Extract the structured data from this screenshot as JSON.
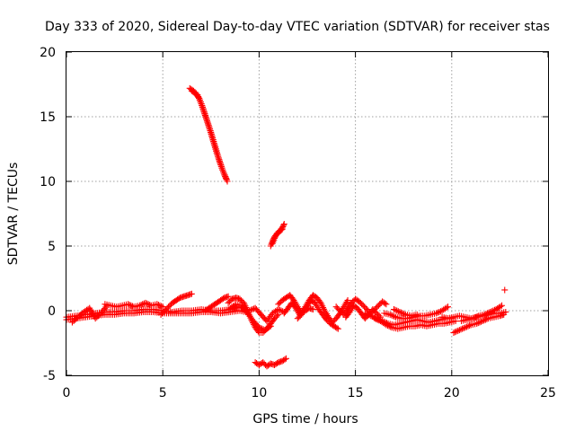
{
  "chart_data": {
    "type": "scatter",
    "title": "Day 333 of 2020, Sidereal Day-to-day VTEC variation (SDTVAR) for receiver stas",
    "xlabel": "GPS time / hours",
    "ylabel": "SDTVAR / TECUs",
    "xlim": [
      0,
      25
    ],
    "ylim": [
      -5,
      20
    ],
    "xticks": [
      "0",
      "5",
      "10",
      "15",
      "20",
      "25"
    ],
    "yticks": [
      "-5",
      "0",
      "5",
      "10",
      "15",
      "20"
    ],
    "grid": true,
    "marker": "+",
    "color": "#ff0000",
    "series": [
      {
        "name": "SDTVAR",
        "segments": [
          {
            "x": [
              0.0,
              0.5,
              1.0,
              1.5,
              2.0,
              2.5,
              3.0,
              3.5,
              4.0,
              4.5,
              5.0,
              5.5,
              6.0,
              6.5,
              7.0,
              7.5,
              8.0,
              8.5,
              9.0,
              9.3
            ],
            "y": [
              -0.5,
              -0.4,
              -0.3,
              -0.2,
              -0.1,
              -0.1,
              0.0,
              0.0,
              0.1,
              0.1,
              0.0,
              -0.1,
              0.0,
              0.0,
              0.1,
              0.0,
              0.0,
              0.1,
              0.3,
              0.1
            ]
          },
          {
            "x": [
              0.0,
              0.5,
              1.0,
              1.5,
              2.0,
              2.5,
              3.0,
              3.5,
              4.0,
              4.5,
              5.0,
              5.5,
              6.0,
              6.5,
              7.0,
              7.5,
              8.0,
              8.5,
              9.0,
              9.3
            ],
            "y": [
              -0.7,
              -0.6,
              -0.5,
              -0.4,
              -0.3,
              -0.3,
              -0.2,
              -0.2,
              -0.1,
              -0.1,
              -0.2,
              -0.2,
              -0.2,
              -0.2,
              -0.1,
              -0.1,
              -0.2,
              -0.1,
              0.0,
              -0.1
            ]
          },
          {
            "x": [
              0.3,
              0.6,
              0.9,
              1.2,
              1.5,
              1.8,
              2.1
            ],
            "y": [
              -0.9,
              -0.5,
              -0.1,
              0.2,
              -0.6,
              -0.2,
              0.4
            ]
          },
          {
            "x": [
              2.0,
              2.3,
              2.6,
              2.9,
              3.2,
              3.5,
              3.8,
              4.1,
              4.4,
              4.7,
              5.0
            ],
            "y": [
              0.5,
              0.4,
              0.3,
              0.4,
              0.5,
              0.3,
              0.4,
              0.6,
              0.4,
              0.5,
              0.3
            ]
          },
          {
            "x": [
              4.9,
              5.1,
              5.3,
              5.5,
              5.7,
              5.9,
              6.1,
              6.3,
              6.5
            ],
            "y": [
              -0.3,
              0.0,
              0.3,
              0.6,
              0.8,
              1.0,
              1.1,
              1.2,
              1.3
            ]
          },
          {
            "x": [
              7.2,
              7.4,
              7.6,
              7.8,
              8.0,
              8.2,
              8.4
            ],
            "y": [
              0.0,
              0.2,
              0.4,
              0.6,
              0.8,
              1.0,
              1.1
            ]
          },
          {
            "x": [
              8.4,
              8.6,
              8.8,
              9.0,
              9.2,
              9.4,
              9.6,
              9.8,
              10.0,
              10.2,
              10.4,
              10.6,
              10.8,
              11.0
            ],
            "y": [
              0.6,
              0.9,
              1.0,
              0.9,
              0.6,
              0.0,
              -0.7,
              -1.3,
              -1.7,
              -1.7,
              -1.4,
              -1.0,
              -0.6,
              -0.3
            ]
          },
          {
            "x": [
              8.5,
              8.8,
              9.1,
              9.4,
              9.7,
              10.0,
              10.3,
              10.6
            ],
            "y": [
              0.2,
              0.5,
              0.4,
              -0.2,
              -0.8,
              -1.3,
              -1.5,
              -1.2
            ]
          },
          {
            "x": [
              9.5,
              9.8,
              10.1,
              10.4,
              10.7,
              11.0,
              11.3
            ],
            "y": [
              0.0,
              0.2,
              -0.3,
              -0.8,
              -0.2,
              0.1,
              -0.1
            ]
          },
          {
            "x": [
              6.4,
              6.6,
              6.8,
              7.0,
              7.2,
              7.4,
              7.6,
              7.8,
              8.0,
              8.2,
              8.35
            ],
            "y": [
              17.2,
              17.0,
              16.7,
              16.0,
              15.1,
              14.2,
              13.2,
              12.2,
              11.3,
              10.5,
              10.0
            ]
          },
          {
            "x": [
              6.5,
              6.7,
              6.9,
              7.1,
              7.3,
              7.5,
              7.7,
              7.9,
              8.1,
              8.3
            ],
            "y": [
              17.0,
              16.8,
              16.4,
              15.6,
              14.7,
              13.8,
              12.8,
              11.8,
              10.9,
              10.2
            ]
          },
          {
            "x": [
              10.6,
              10.7,
              10.8,
              10.9,
              11.0,
              11.1,
              11.2,
              11.3
            ],
            "y": [
              5.0,
              5.4,
              5.7,
              5.9,
              6.1,
              6.2,
              6.4,
              6.7
            ]
          },
          {
            "x": [
              10.7,
              10.8,
              10.9,
              11.0,
              11.1,
              11.2
            ],
            "y": [
              5.2,
              5.6,
              5.9,
              6.0,
              6.2,
              6.3
            ]
          },
          {
            "x": [
              9.8,
              10.0,
              10.2,
              10.4,
              10.6,
              10.8,
              11.0,
              11.2,
              11.4
            ],
            "y": [
              -4.0,
              -4.2,
              -4.0,
              -4.3,
              -4.1,
              -4.2,
              -4.0,
              -3.9,
              -3.7
            ]
          },
          {
            "x": [
              11.0,
              11.2,
              11.4,
              11.6,
              11.8,
              12.0,
              12.2,
              12.4,
              12.6,
              12.8,
              13.0,
              13.2,
              13.4,
              13.6,
              13.8,
              14.0,
              14.2,
              14.4,
              14.6
            ],
            "y": [
              0.5,
              0.8,
              1.0,
              1.2,
              0.8,
              0.3,
              -0.2,
              0.3,
              0.8,
              1.2,
              1.0,
              0.6,
              0.0,
              -0.5,
              -0.9,
              -0.6,
              -0.2,
              0.3,
              0.8
            ]
          },
          {
            "x": [
              11.3,
              11.5,
              11.7,
              11.9,
              12.1,
              12.3,
              12.5,
              12.7,
              12.9,
              13.1,
              13.3,
              13.5,
              13.7,
              13.9,
              14.1
            ],
            "y": [
              -0.2,
              0.2,
              0.6,
              0.2,
              -0.3,
              0.0,
              0.4,
              0.8,
              0.6,
              0.1,
              -0.3,
              -0.7,
              -1.0,
              -1.2,
              -1.4
            ]
          },
          {
            "x": [
              12.0,
              12.2,
              12.4,
              12.6,
              12.8
            ],
            "y": [
              -0.6,
              -0.3,
              0.0,
              0.2,
              0.1
            ]
          },
          {
            "x": [
              14.0,
              14.2,
              14.4,
              14.6,
              14.8,
              15.0,
              15.2,
              15.4,
              15.6,
              15.8,
              16.0,
              16.2,
              16.4,
              16.6
            ],
            "y": [
              0.3,
              0.0,
              -0.3,
              0.2,
              0.6,
              0.9,
              0.7,
              0.4,
              0.1,
              -0.2,
              0.1,
              0.4,
              0.7,
              0.5
            ]
          },
          {
            "x": [
              14.5,
              14.7,
              14.9,
              15.1,
              15.3,
              15.5,
              15.7,
              15.9,
              16.1,
              16.3
            ],
            "y": [
              -0.5,
              -0.1,
              0.4,
              0.2,
              -0.2,
              -0.6,
              -0.3,
              0.1,
              -0.2,
              -0.5
            ]
          },
          {
            "x": [
              15.5,
              15.8,
              16.1,
              16.4,
              16.7,
              17.0,
              17.3,
              17.6,
              17.9,
              18.2,
              18.5,
              18.8,
              19.1,
              19.4,
              19.7,
              20.0
            ],
            "y": [
              -0.2,
              -0.4,
              -0.6,
              -0.8,
              -1.0,
              -1.1,
              -1.0,
              -0.9,
              -0.8,
              -0.7,
              -0.8,
              -0.9,
              -0.8,
              -0.7,
              -0.6,
              -0.6
            ]
          },
          {
            "x": [
              16.0,
              16.3,
              16.6,
              16.9,
              17.2,
              17.5,
              17.8,
              18.1,
              18.4,
              18.7,
              19.0,
              19.3,
              19.6,
              19.9,
              20.2
            ],
            "y": [
              -0.6,
              -0.8,
              -1.1,
              -1.3,
              -1.4,
              -1.3,
              -1.2,
              -1.2,
              -1.1,
              -1.2,
              -1.1,
              -1.0,
              -1.0,
              -0.9,
              -0.8
            ]
          },
          {
            "x": [
              16.5,
              16.8,
              17.1,
              17.4,
              17.7,
              18.0,
              18.3,
              18.6,
              18.9,
              19.2,
              19.5,
              19.8
            ],
            "y": [
              -0.2,
              -0.3,
              -0.5,
              -0.6,
              -0.6,
              -0.5,
              -0.4,
              -0.4,
              -0.3,
              -0.2,
              0.0,
              0.3
            ]
          },
          {
            "x": [
              17.0,
              17.3,
              17.6,
              17.9,
              18.2
            ],
            "y": [
              0.1,
              -0.1,
              -0.3,
              -0.4,
              -0.3
            ]
          },
          {
            "x": [
              19.5,
              19.8,
              20.1,
              20.4,
              20.7,
              21.0,
              21.3,
              21.6,
              21.9,
              22.2,
              22.5,
              22.8
            ],
            "y": [
              -0.5,
              -0.6,
              -0.5,
              -0.4,
              -0.5,
              -0.6,
              -0.5,
              -0.4,
              -0.3,
              -0.2,
              -0.2,
              -0.1
            ]
          },
          {
            "x": [
              20.1,
              20.4,
              20.7,
              21.0,
              21.3,
              21.6,
              21.9,
              22.2,
              22.5,
              22.7
            ],
            "y": [
              -1.7,
              -1.5,
              -1.3,
              -1.1,
              -1.0,
              -0.8,
              -0.6,
              -0.5,
              -0.4,
              -0.3
            ]
          },
          {
            "x": [
              20.5,
              20.8,
              21.1,
              21.4,
              21.7,
              22.0,
              22.3,
              22.6
            ],
            "y": [
              -0.8,
              -0.7,
              -0.6,
              -0.4,
              -0.3,
              -0.1,
              0.1,
              0.4
            ]
          },
          {
            "x": [
              22.75
            ],
            "y": [
              1.6
            ]
          }
        ]
      }
    ]
  }
}
